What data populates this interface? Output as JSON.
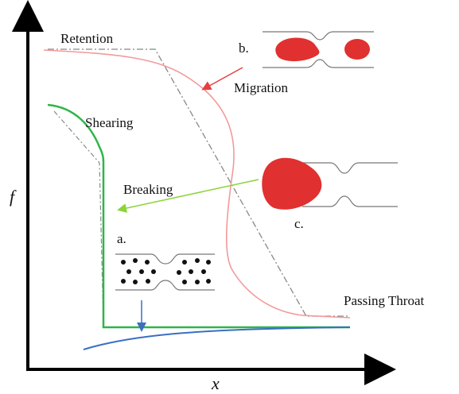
{
  "diagram": {
    "axes": {
      "y_label": "f",
      "x_label": "x"
    },
    "labels": {
      "retention": "Retention",
      "b": "b.",
      "migration": "Migration",
      "shearing": "Shearing",
      "breaking": "Breaking",
      "c": "c.",
      "a": "a.",
      "passing_throat": "Passing Throat"
    }
  }
}
